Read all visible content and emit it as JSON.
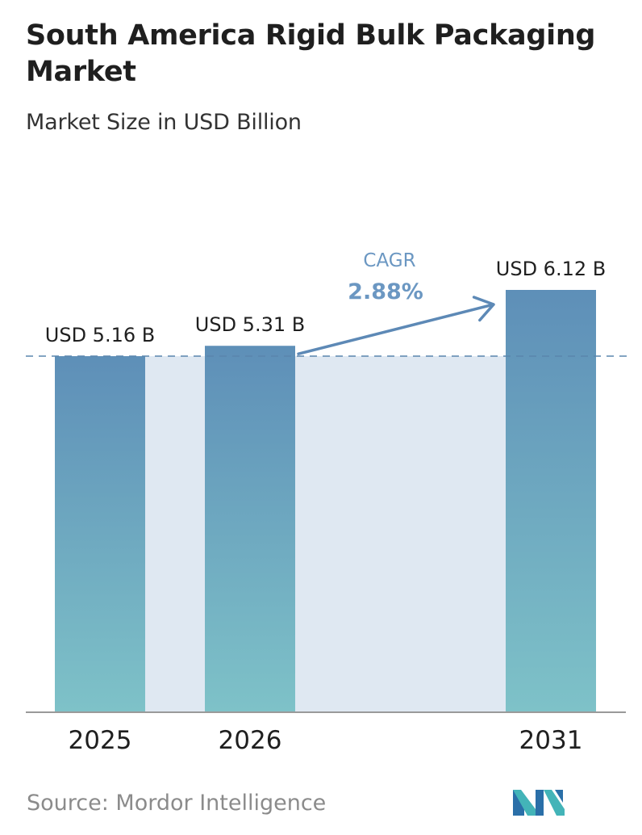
{
  "title": "South America Rigid Bulk Packaging Market",
  "subtitle": "Market Size in USD Billion",
  "source": "Source: Mordor Intelligence",
  "cagr": {
    "label": "CAGR",
    "value": "2.88%"
  },
  "colors": {
    "bar_top": "#5e8fb8",
    "bar_bottom": "#7ec2c8",
    "band": "#dfe8f2",
    "cagr_text": "#6b97c2",
    "arrow": "#5d89b6",
    "dash": "#5a85ad",
    "baseline": "#9a9a9a"
  },
  "chart_data": {
    "type": "bar",
    "categories": [
      "2025",
      "2026",
      "2031"
    ],
    "values": [
      5.16,
      5.31,
      6.12
    ],
    "value_labels": [
      "USD 5.16 B",
      "USD 5.31 B",
      "USD 6.12 B"
    ],
    "ylabel": "Market Size in USD Billion",
    "ylim": [
      0,
      6.12
    ],
    "grid": false,
    "legend": "none"
  }
}
